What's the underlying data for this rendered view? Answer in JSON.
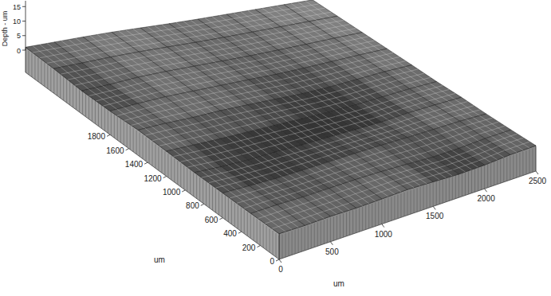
{
  "chart_data": {
    "type": "surface",
    "x_label": "um",
    "y_label": "um",
    "z_label": "Depth - um",
    "x": [
      0,
      250,
      500,
      750,
      1000,
      1250,
      1500,
      1750,
      2000,
      2250,
      2500
    ],
    "y": [
      0,
      300,
      600,
      900,
      1200,
      1500,
      1800,
      2100,
      2400,
      2700
    ],
    "z": [
      [
        1.2,
        1.0,
        1.1,
        0.9,
        1.0,
        1.2,
        0.8,
        0.4,
        0.5,
        1.0,
        1.1
      ],
      [
        1.0,
        1.1,
        0.9,
        1.0,
        1.1,
        1.0,
        0.7,
        0.3,
        0.4,
        0.9,
        1.0
      ],
      [
        0.9,
        0.6,
        0.4,
        0.5,
        0.7,
        0.9,
        1.0,
        1.0,
        1.1,
        1.2,
        1.0
      ],
      [
        0.8,
        0.2,
        0.0,
        0.1,
        0.0,
        0.1,
        0.2,
        0.3,
        0.9,
        1.1,
        1.2
      ],
      [
        1.0,
        0.7,
        0.5,
        0.4,
        0.3,
        0.2,
        0.1,
        0.2,
        0.6,
        1.0,
        1.1
      ],
      [
        1.1,
        1.2,
        1.0,
        1.1,
        0.9,
        0.6,
        0.3,
        0.4,
        0.8,
        1.2,
        1.3
      ],
      [
        0.5,
        1.0,
        1.3,
        1.2,
        1.1,
        1.0,
        0.8,
        0.9,
        1.1,
        1.3,
        1.4
      ],
      [
        0.3,
        0.6,
        1.2,
        1.3,
        1.2,
        1.1,
        1.0,
        1.1,
        1.2,
        1.4,
        1.5
      ],
      [
        0.8,
        1.0,
        1.3,
        1.4,
        1.3,
        1.2,
        1.2,
        1.3,
        1.4,
        1.5,
        1.6
      ],
      [
        1.0,
        1.2,
        1.4,
        1.5,
        1.4,
        1.3,
        1.3,
        1.4,
        1.5,
        1.6,
        1.7
      ]
    ],
    "xlim": [
      0,
      2500
    ],
    "ylim": [
      0,
      2700
    ],
    "zlim": [
      0,
      17
    ],
    "xticks": [
      0,
      500,
      1000,
      1500,
      2000,
      2500
    ],
    "yticks": [
      0,
      200,
      400,
      600,
      800,
      1000,
      1200,
      1400,
      1600,
      1800
    ],
    "zticks": [
      0,
      5,
      10,
      15
    ],
    "color": "#1a1a1a"
  }
}
